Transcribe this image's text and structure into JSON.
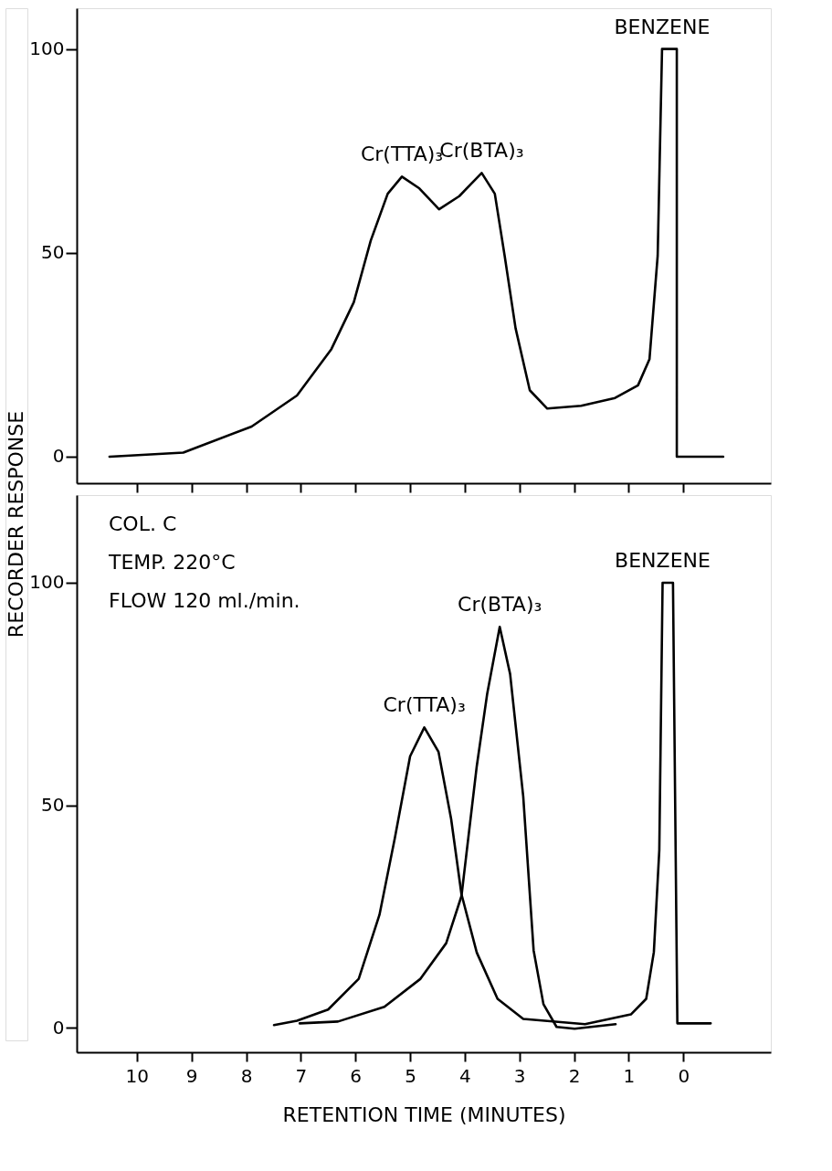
{
  "chart_data": [
    {
      "type": "line",
      "ylabel": "RECORDER RESPONSE",
      "xlim": [
        11.1,
        -1.6
      ],
      "ylim": [
        -6.5,
        110
      ],
      "yticks": [
        0,
        50,
        100
      ],
      "xticks": [
        0,
        1,
        2,
        3,
        4,
        5,
        6,
        7,
        8,
        9,
        10
      ],
      "tick_labels": "y",
      "grid": false,
      "legend": false,
      "marker": "none",
      "line_style": "solid",
      "series": [
        {
          "color": "#000000",
          "x": [
            10.5,
            9.15,
            7.9,
            7.07,
            6.44,
            6.03,
            5.72,
            5.41,
            5.15,
            4.83,
            4.47,
            4.1,
            3.69,
            3.45,
            3.27,
            3.07,
            2.81,
            2.49,
            1.87,
            1.25,
            0.83,
            0.62,
            0.47,
            0.39,
            0.12,
            0.12,
            -0.73
          ],
          "values": [
            0,
            1,
            7.4,
            15,
            26.4,
            37.9,
            53,
            64.5,
            68.7,
            65.8,
            60.7,
            63.9,
            69.6,
            64.5,
            49.3,
            31.5,
            16.3,
            11.8,
            12.5,
            14.4,
            17.5,
            23.9,
            49.3,
            100,
            100,
            0,
            0
          ]
        }
      ],
      "annotations": [
        {
          "text": "Cr(TTA)₃",
          "x": 5.15,
          "y": 68.7
        },
        {
          "text": "Cr(BTA)₃",
          "x": 3.69,
          "y": 69.6
        },
        {
          "text": "BENZENE",
          "x": 0.39,
          "y": 100
        }
      ]
    },
    {
      "type": "line",
      "xlabel": "RETENTION TIME (MINUTES)",
      "xlim": [
        11.1,
        -1.6
      ],
      "ylim": [
        -5.5,
        119.7
      ],
      "yticks": [
        0,
        50,
        100
      ],
      "xticks": [
        0,
        1,
        2,
        3,
        4,
        5,
        6,
        7,
        8,
        9,
        10
      ],
      "grid": false,
      "legend": false,
      "marker": "none",
      "line_style": "solid",
      "series": [
        {
          "color": "#000000",
          "x": [
            7.49,
            7.07,
            6.5,
            5.94,
            5.56,
            5.28,
            5.0,
            4.74,
            4.48,
            4.25,
            4.06,
            3.78,
            3.4,
            2.93,
            1.8,
            0.96,
            0.68,
            0.54,
            0.44,
            0.38,
            0.19,
            0.11,
            -0.5
          ],
          "values": [
            0.6,
            1.6,
            4.1,
            11,
            25.4,
            42.6,
            61,
            67.5,
            62,
            47,
            30,
            16.9,
            6.5,
            2,
            0.8,
            3,
            6.5,
            17,
            40,
            100,
            100,
            1,
            1
          ]
        },
        {
          "color": "#000000",
          "x": [
            7.02,
            6.32,
            5.47,
            4.81,
            4.34,
            4.06,
            3.78,
            3.59,
            3.36,
            3.17,
            2.93,
            2.74,
            2.56,
            2.32,
            1.99,
            1.24
          ],
          "values": [
            1,
            1.4,
            4.7,
            11,
            19,
            29.6,
            58.8,
            75,
            90.1,
            79.5,
            52,
            17.4,
            5.3,
            0.2,
            -0.2,
            0.8
          ]
        }
      ],
      "annotations": [
        "COL. C",
        "TEMP. 220°C",
        "FLOW 120 ml./min.",
        {
          "text": "Cr(TTA)₃",
          "x": 4.74,
          "y": 67.5
        },
        {
          "text": "Cr(BTA)₃",
          "x": 3.36,
          "y": 90.1
        },
        {
          "text": "BENZENE",
          "x": 0.38,
          "y": 100
        }
      ]
    }
  ]
}
